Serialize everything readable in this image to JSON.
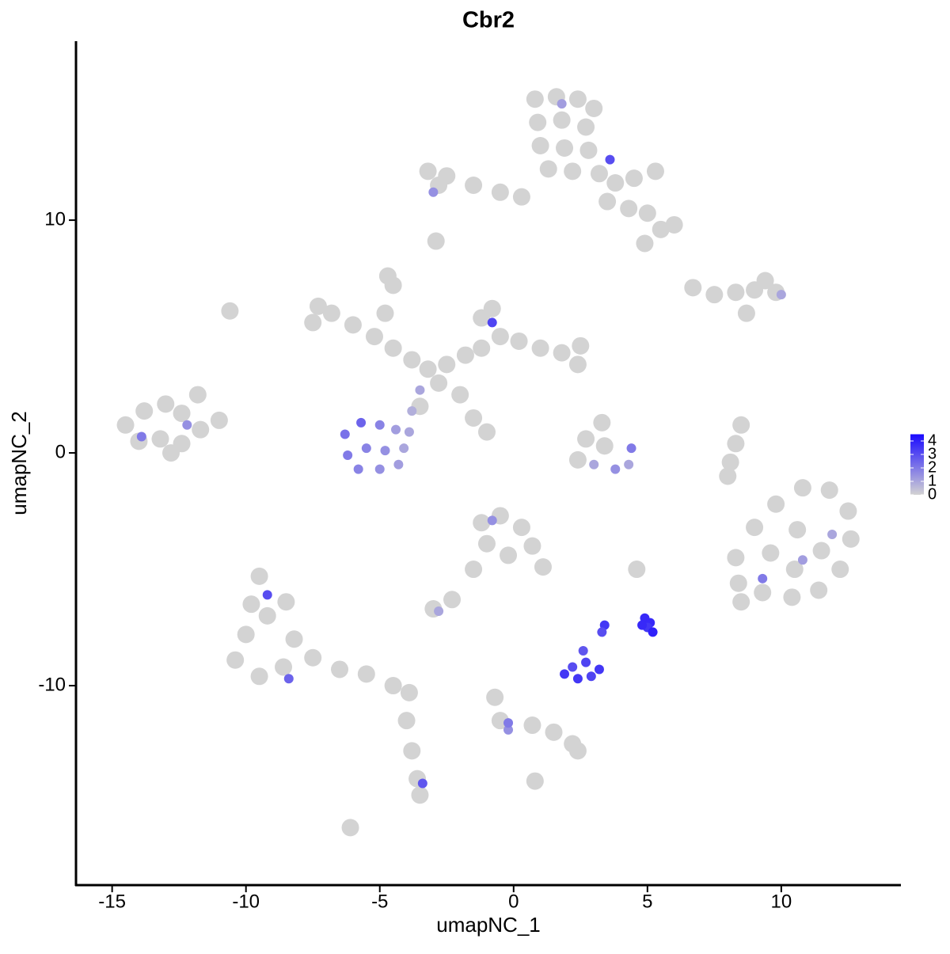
{
  "chart_data": {
    "type": "scatter",
    "title": "Cbr2",
    "x_label": "umapNC_1",
    "y_label": "umapNC_2",
    "xlim": [
      -16.35,
      14.47
    ],
    "ylim": [
      -18.57,
      17.69
    ],
    "xticks": [
      -15,
      -10,
      -5,
      0,
      5,
      10
    ],
    "yticks": [
      -10,
      0,
      10
    ],
    "color_low": "#d3d3d3",
    "color_high": "#1a0aff",
    "color_lim": [
      0,
      4.5
    ],
    "color_ticks": [
      4,
      3,
      2,
      1,
      0
    ],
    "x": [
      0.8,
      1.6,
      2.4,
      3.0,
      0.9,
      1.8,
      2.7,
      1.0,
      1.9,
      2.8,
      1.3,
      2.2,
      3.2,
      3.8,
      4.5,
      5.3,
      3.5,
      4.3,
      5.0,
      5.5,
      6.0,
      4.9,
      -0.5,
      -1.5,
      -2.5,
      -3.2,
      -2.8,
      0.3,
      1.8,
      3.6,
      -3.0,
      -14.5,
      -13.8,
      -13.0,
      -12.4,
      -14.0,
      -13.2,
      -12.4,
      -11.7,
      -11.0,
      -12.8,
      -11.8,
      -13.9,
      -12.2,
      -7.5,
      -6.8,
      -6.0,
      -5.2,
      -4.5,
      -3.8,
      -3.2,
      -2.5,
      -1.8,
      -1.2,
      -0.5,
      -1.2,
      -0.8,
      0.2,
      1.0,
      1.8,
      2.4,
      -4.8,
      -4.5,
      -2.8,
      -2.0,
      -1.5,
      -1.0,
      -7.3,
      -0.8,
      -3.5,
      -6.3,
      -5.7,
      -5.0,
      -4.4,
      -3.9,
      -6.2,
      -5.5,
      -4.8,
      -4.1,
      -5.8,
      -5.0,
      -4.3,
      -3.8,
      -3.5,
      2.4,
      3.0,
      3.8,
      4.3,
      2.7,
      3.4,
      3.3,
      4.4,
      8.3,
      9.0,
      9.8,
      10.8,
      11.8,
      12.5,
      12.6,
      12.2,
      11.4,
      10.4,
      9.3,
      8.4,
      9.6,
      10.6,
      11.5,
      10.5,
      9.3,
      10.8,
      11.9,
      8.5,
      -9.5,
      -9.8,
      -9.2,
      -10.0,
      -10.4,
      -9.5,
      -8.6,
      -8.2,
      -8.5,
      -7.5,
      -6.5,
      -5.5,
      -4.5,
      -3.9,
      -8.4,
      -9.2,
      -4.0,
      -3.8,
      -3.6,
      -3.5,
      -3.4,
      -6.1,
      -1.2,
      -0.5,
      0.3,
      0.7,
      1.1,
      -1.0,
      -0.2,
      -0.8,
      -1.5,
      -2.3,
      -3.0,
      -2.8,
      1.9,
      2.4,
      2.9,
      3.2,
      2.2,
      2.7,
      2.6,
      3.4,
      3.3,
      4.9,
      5.1,
      5.0,
      5.2,
      4.8,
      -0.7,
      -0.5,
      -0.2,
      -0.2,
      0.7,
      1.5,
      2.2,
      2.4,
      0.8,
      6.7,
      7.5,
      8.3,
      9.0,
      9.8,
      9.4,
      10.0,
      8.7,
      8.5,
      8.3,
      8.1,
      8.0,
      -10.6,
      -2.9,
      -4.7,
      2.5,
      4.6
    ],
    "values": [
      15.2,
      15.3,
      15.2,
      14.8,
      14.2,
      14.3,
      14.0,
      13.2,
      13.1,
      13.0,
      12.2,
      12.1,
      12.0,
      11.6,
      11.8,
      12.1,
      10.8,
      10.5,
      10.3,
      9.6,
      9.8,
      9.0,
      11.2,
      11.5,
      11.9,
      12.1,
      11.5,
      11.0,
      15.0,
      12.6,
      11.2,
      1.2,
      1.8,
      2.1,
      1.7,
      0.5,
      0.6,
      0.4,
      1.0,
      1.4,
      0.0,
      2.5,
      0.7,
      1.2,
      5.6,
      6.0,
      5.5,
      5.0,
      4.5,
      4.0,
      3.6,
      3.8,
      4.2,
      4.5,
      5.0,
      5.8,
      6.2,
      4.8,
      4.5,
      4.3,
      3.8,
      6.0,
      7.2,
      3.0,
      2.5,
      1.5,
      0.9,
      6.3,
      5.6,
      2.7,
      0.8,
      1.3,
      1.2,
      1.0,
      0.9,
      -0.1,
      0.2,
      0.1,
      0.2,
      -0.7,
      -0.7,
      -0.5,
      1.8,
      2.0,
      -0.3,
      -0.5,
      -0.7,
      -0.5,
      0.6,
      0.3,
      1.3,
      0.2,
      -4.5,
      -3.2,
      -2.2,
      -1.5,
      -1.6,
      -2.5,
      -3.7,
      -5.0,
      -5.9,
      -6.2,
      -6.0,
      -5.6,
      -4.3,
      -3.3,
      -4.2,
      -5.0,
      -5.4,
      -4.6,
      -3.5,
      -6.4,
      -5.3,
      -6.5,
      -7.0,
      -7.8,
      -8.9,
      -9.6,
      -9.2,
      -8.0,
      -6.4,
      -8.8,
      -9.3,
      -9.5,
      -10.0,
      -10.3,
      -9.7,
      -6.1,
      -11.5,
      -12.8,
      -14.0,
      -14.7,
      -14.2,
      -16.1,
      -3.0,
      -2.7,
      -3.2,
      -4.0,
      -4.9,
      -3.9,
      -4.4,
      -2.9,
      -5.0,
      -6.3,
      -6.7,
      -6.8,
      -9.5,
      -9.7,
      -9.6,
      -9.3,
      -9.2,
      -9.0,
      -8.5,
      -7.4,
      -7.7,
      -7.1,
      -7.3,
      -7.5,
      -7.7,
      -7.4,
      -10.5,
      -11.5,
      -11.9,
      -11.6,
      -11.7,
      -12.0,
      -12.5,
      -12.8,
      -14.1,
      7.1,
      6.8,
      6.9,
      7.0,
      6.9,
      7.4,
      6.8,
      6.0,
      1.2,
      0.4,
      -0.4,
      -1.0,
      6.1,
      9.1,
      7.6,
      4.6,
      -5.0
    ],
    "expression": [
      0,
      0,
      0,
      0,
      0,
      0,
      0,
      0,
      0,
      0,
      0,
      0,
      0,
      0,
      0,
      0,
      0,
      0,
      0,
      0,
      0,
      0,
      0,
      0,
      0,
      0,
      0,
      0,
      1.2,
      3,
      1.5,
      0,
      0,
      0,
      0,
      0,
      0,
      0,
      0,
      0,
      0,
      0,
      2,
      1.5,
      0,
      0,
      0,
      0,
      0,
      0,
      0,
      0,
      0,
      0,
      0,
      0,
      0,
      0,
      0,
      0,
      0,
      0,
      0,
      0,
      0,
      0,
      0,
      0,
      3.2,
      1,
      2.2,
      2.5,
      1.8,
      1.2,
      1.0,
      2,
      1.8,
      1.5,
      1.0,
      1.8,
      1.5,
      1.2,
      0.8,
      0,
      0,
      1,
      1.5,
      1,
      0,
      0,
      0,
      2,
      0,
      0,
      0,
      0,
      0,
      0,
      0,
      0,
      0,
      0,
      0,
      0,
      0,
      0,
      0,
      0,
      2,
      1.2,
      1,
      0,
      0,
      0,
      0,
      0,
      0,
      0,
      0,
      0,
      0,
      0,
      0,
      0,
      0,
      0,
      2.5,
      3,
      0,
      0,
      0,
      0,
      2.8,
      0,
      0,
      0,
      0,
      0,
      0,
      0,
      0,
      1.5,
      0,
      0,
      0,
      1,
      3.5,
      3.5,
      3.2,
      3.5,
      3,
      3.2,
      2.8,
      3.5,
      3,
      3.8,
      3.8,
      3.5,
      4,
      3.8,
      0,
      0,
      1.5,
      2,
      0,
      0,
      0,
      0,
      0,
      0,
      0,
      0,
      0,
      0,
      0,
      1,
      0,
      0,
      0,
      0,
      0,
      0,
      0,
      0,
      0,
      0
    ]
  }
}
